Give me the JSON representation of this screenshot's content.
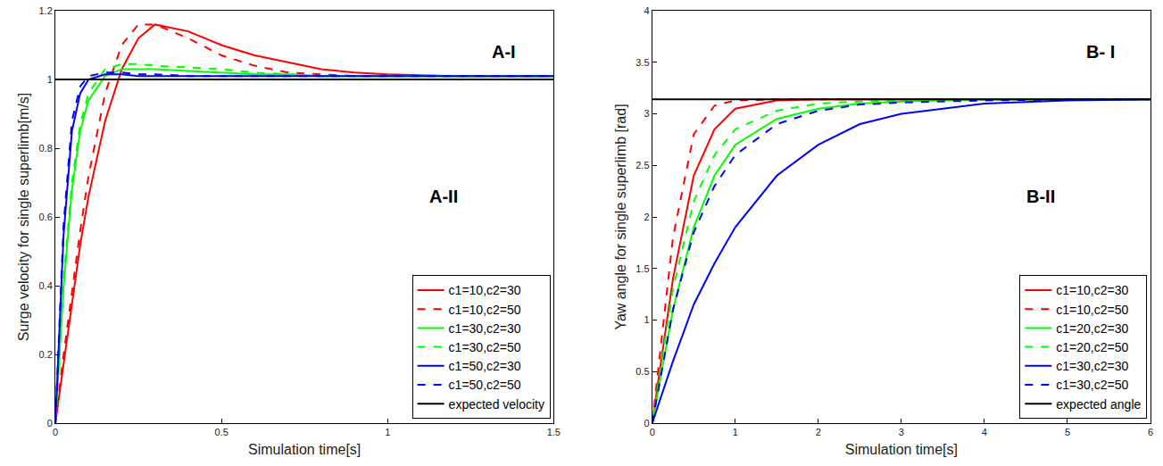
{
  "chart_data": [
    {
      "type": "line",
      "xlabel": "Simulation time[s]",
      "ylabel": "Surge velocity for single superlimb[m/s]",
      "annotations": [
        "A-I",
        "A-II"
      ],
      "x": [
        0,
        0.025,
        0.05,
        0.075,
        0.1,
        0.15,
        0.2,
        0.25,
        0.3,
        0.4,
        0.5,
        0.6,
        0.7,
        0.8,
        0.9,
        1.0,
        1.2,
        1.5
      ],
      "xlim": [
        0,
        1.5
      ],
      "xticks": [
        0,
        0.5,
        1,
        1.5
      ],
      "ylim": [
        0,
        1.2
      ],
      "yticks": [
        0,
        0.2,
        0.4,
        0.6,
        0.8,
        1,
        1.2
      ],
      "grid": false,
      "legend": "lower right",
      "series": [
        {
          "name": "c1=10,c2=30",
          "color": "#ff0000",
          "line_style": "solid",
          "values": [
            0,
            0.17,
            0.35,
            0.52,
            0.66,
            0.88,
            1.03,
            1.12,
            1.16,
            1.14,
            1.1,
            1.07,
            1.05,
            1.03,
            1.02,
            1.015,
            1.01,
            1.01
          ]
        },
        {
          "name": "c1=10,c2=50",
          "color": "#ff0000",
          "line_style": "dashed",
          "values": [
            0,
            0.2,
            0.38,
            0.56,
            0.72,
            0.96,
            1.1,
            1.16,
            1.16,
            1.12,
            1.07,
            1.04,
            1.02,
            1.015,
            1.01,
            1.01,
            1.01,
            1.01
          ]
        },
        {
          "name": "c1=30,c2=30",
          "color": "#00ff00",
          "line_style": "solid",
          "values": [
            0,
            0.4,
            0.68,
            0.85,
            0.94,
            1.01,
            1.03,
            1.03,
            1.03,
            1.025,
            1.02,
            1.015,
            1.015,
            1.01,
            1.01,
            1.01,
            1.01,
            1.01
          ]
        },
        {
          "name": "c1=30,c2=50",
          "color": "#00ff00",
          "line_style": "dashed",
          "values": [
            0,
            0.42,
            0.7,
            0.87,
            0.96,
            1.03,
            1.045,
            1.045,
            1.04,
            1.035,
            1.03,
            1.02,
            1.015,
            1.01,
            1.01,
            1.01,
            1.01,
            1.01
          ]
        },
        {
          "name": "c1=50,c2=30",
          "color": "#0000ff",
          "line_style": "solid",
          "values": [
            0,
            0.55,
            0.85,
            0.96,
            1.0,
            1.015,
            1.015,
            1.01,
            1.01,
            1.01,
            1.01,
            1.01,
            1.01,
            1.01,
            1.01,
            1.01,
            1.01,
            1.01
          ]
        },
        {
          "name": "c1=50,c2=50",
          "color": "#0000ff",
          "line_style": "dashed",
          "values": [
            0,
            0.58,
            0.88,
            0.98,
            1.01,
            1.02,
            1.02,
            1.015,
            1.015,
            1.01,
            1.01,
            1.01,
            1.01,
            1.01,
            1.01,
            1.01,
            1.01,
            1.01
          ]
        },
        {
          "name": "expected velocity",
          "color": "#000000",
          "line_style": "solid",
          "values": [
            1,
            1,
            1,
            1,
            1,
            1,
            1,
            1,
            1,
            1,
            1,
            1,
            1,
            1,
            1,
            1,
            1,
            1
          ]
        }
      ]
    },
    {
      "type": "line",
      "xlabel": "Simulation time[s]",
      "ylabel": "Yaw angle for single superlimb [rad]",
      "annotations": [
        "B- I",
        "B-II"
      ],
      "x": [
        0,
        0.25,
        0.5,
        0.75,
        1,
        1.5,
        2,
        2.5,
        3,
        4,
        5,
        6
      ],
      "xlim": [
        0,
        6
      ],
      "xticks": [
        0,
        1,
        2,
        3,
        4,
        5,
        6
      ],
      "ylim": [
        0,
        4
      ],
      "yticks": [
        0,
        0.5,
        1,
        1.5,
        2,
        2.5,
        3,
        3.5,
        4
      ],
      "grid": false,
      "legend": "lower right",
      "series": [
        {
          "name": "c1=10,c2=30",
          "color": "#ff0000",
          "line_style": "solid",
          "values": [
            0,
            1.4,
            2.4,
            2.85,
            3.05,
            3.13,
            3.14,
            3.14,
            3.14,
            3.14,
            3.14,
            3.14
          ]
        },
        {
          "name": "c1=10,c2=50",
          "color": "#ff0000",
          "line_style": "dashed",
          "values": [
            0,
            1.8,
            2.8,
            3.08,
            3.13,
            3.14,
            3.14,
            3.14,
            3.14,
            3.14,
            3.14,
            3.14
          ]
        },
        {
          "name": "c1=20,c2=30",
          "color": "#00ff00",
          "line_style": "solid",
          "values": [
            0,
            1.1,
            1.9,
            2.4,
            2.7,
            2.95,
            3.05,
            3.1,
            3.12,
            3.14,
            3.14,
            3.14
          ]
        },
        {
          "name": "c1=20,c2=50",
          "color": "#00ff00",
          "line_style": "dashed",
          "values": [
            0,
            1.3,
            2.15,
            2.6,
            2.85,
            3.03,
            3.1,
            3.12,
            3.13,
            3.14,
            3.14,
            3.14
          ]
        },
        {
          "name": "c1=30,c2=30",
          "color": "#0000ff",
          "line_style": "solid",
          "values": [
            0,
            0.6,
            1.15,
            1.55,
            1.9,
            2.4,
            2.7,
            2.9,
            3.0,
            3.1,
            3.13,
            3.14
          ]
        },
        {
          "name": "c1=30,c2=50",
          "color": "#0000ff",
          "line_style": "dashed",
          "values": [
            0,
            1.1,
            1.85,
            2.3,
            2.6,
            2.9,
            3.03,
            3.09,
            3.11,
            3.13,
            3.14,
            3.14
          ]
        },
        {
          "name": "expected angle",
          "color": "#000000",
          "line_style": "solid",
          "values": [
            3.14,
            3.14,
            3.14,
            3.14,
            3.14,
            3.14,
            3.14,
            3.14,
            3.14,
            3.14,
            3.14,
            3.14
          ]
        }
      ]
    }
  ]
}
